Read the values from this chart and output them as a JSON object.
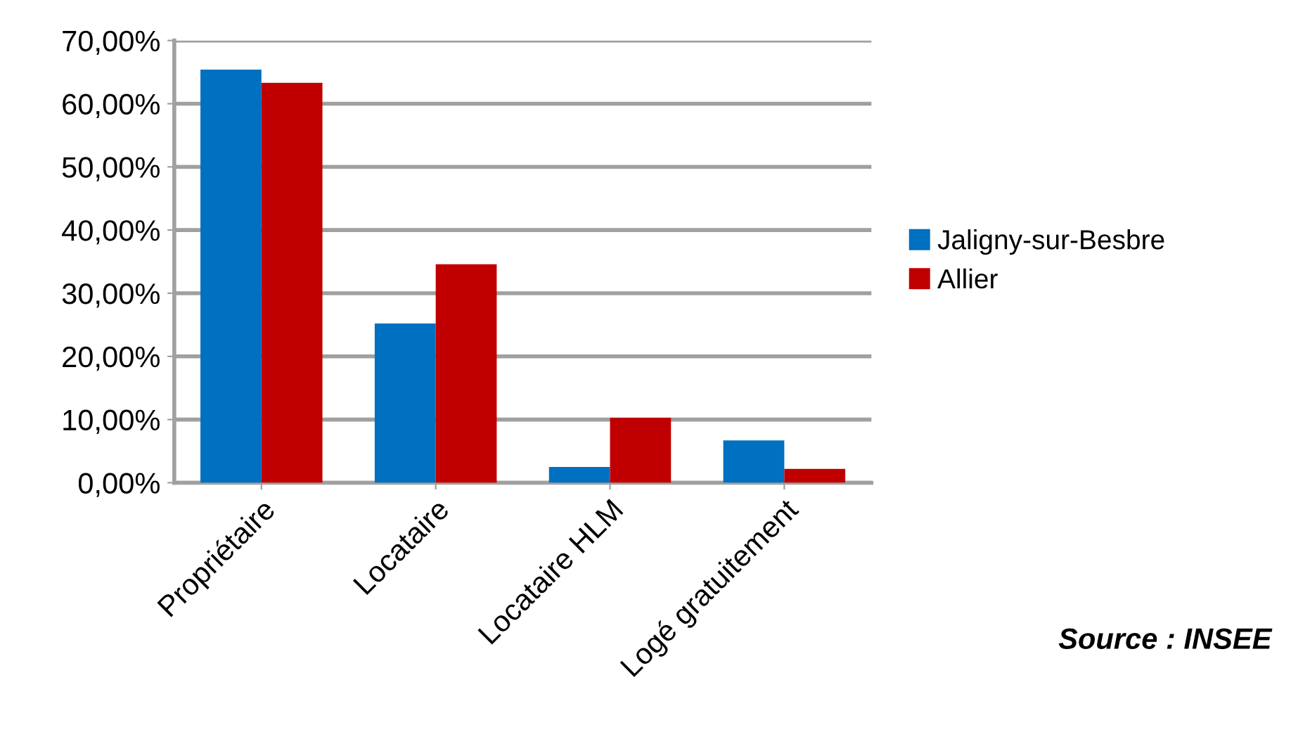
{
  "chart_data": {
    "type": "bar",
    "categories": [
      "Propriétaire",
      "Locataire",
      "Locataire HLM",
      "Logé gratuitement"
    ],
    "series": [
      {
        "name": "Jaligny-sur-Besbre",
        "color": "#0070c0",
        "values": [
          65.4,
          25.2,
          2.5,
          6.7
        ]
      },
      {
        "name": "Allier",
        "color": "#c00000",
        "values": [
          63.3,
          34.6,
          10.3,
          2.2
        ]
      }
    ],
    "ylim": [
      0,
      70
    ],
    "yticks": [
      {
        "value": 0,
        "label": "0,00%"
      },
      {
        "value": 10,
        "label": "10,00%"
      },
      {
        "value": 20,
        "label": "20,00%"
      },
      {
        "value": 30,
        "label": "30,00%"
      },
      {
        "value": 40,
        "label": "40,00%"
      },
      {
        "value": 50,
        "label": "50,00%"
      },
      {
        "value": 60,
        "label": "60,00%"
      },
      {
        "value": 70,
        "label": "70,00%"
      }
    ],
    "grid": "y",
    "legend": "right",
    "annotations": [
      "Source : INSEE"
    ]
  }
}
